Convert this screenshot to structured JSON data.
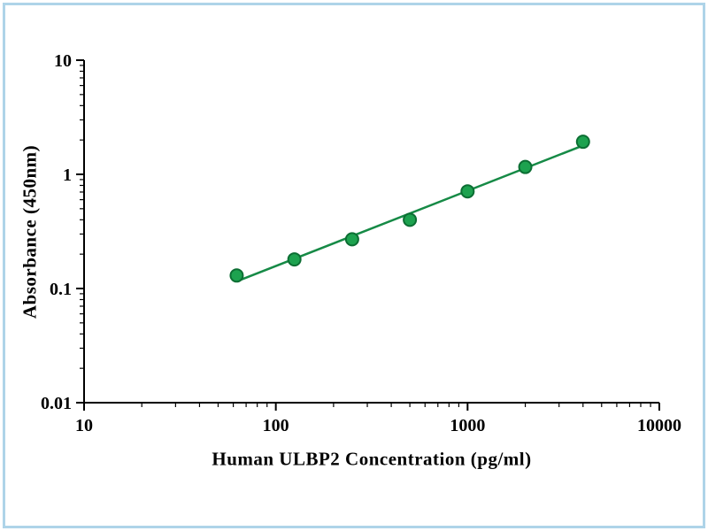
{
  "frame": {
    "border_color": "#aed4e8",
    "background": "#ffffff"
  },
  "chart_data": {
    "type": "scatter",
    "x": [
      62.5,
      125,
      250,
      500,
      1000,
      2000,
      4000
    ],
    "y": [
      0.13,
      0.18,
      0.27,
      0.4,
      0.71,
      1.16,
      1.93
    ],
    "xlabel": "Human ULBP2 Concentration (pg/ml)",
    "ylabel": "Absorbance (450nm)",
    "xscale": "log",
    "yscale": "log",
    "xlim": [
      10,
      10000
    ],
    "ylim": [
      0.01,
      10
    ],
    "xticks": {
      "values": [
        10,
        100,
        1000,
        10000
      ],
      "labels": [
        "10",
        "100",
        "1000",
        "10000"
      ]
    },
    "yticks": {
      "values": [
        0.01,
        0.1,
        1,
        10
      ],
      "labels": [
        "0.01",
        "0.1",
        "1",
        "10"
      ]
    },
    "grid": false,
    "legend": false,
    "trend": "straight-fit-line-loglog",
    "line_color": "#168a46",
    "marker_fill": "#1da24f",
    "marker_stroke": "#0c6e33",
    "axis_color": "#000000"
  }
}
